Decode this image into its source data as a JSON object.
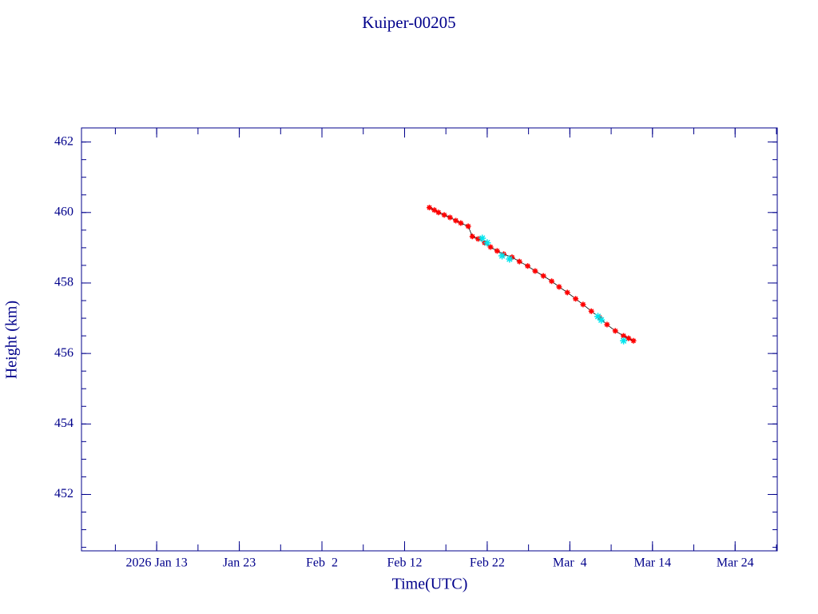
{
  "chart_data": {
    "type": "scatter",
    "title": "Kuiper-00205",
    "x_label": "Time(UTC)",
    "y_label": "Height (km)",
    "xlim": [
      3.9,
      88.1
    ],
    "ylim": [
      450.4,
      462.4
    ],
    "xticks": [
      {
        "value": 13,
        "label": "2026 Jan 13"
      },
      {
        "value": 23,
        "label": "Jan 23"
      },
      {
        "value": 33,
        "label": "Feb  2"
      },
      {
        "value": 43,
        "label": "Feb 12"
      },
      {
        "value": 53,
        "label": "Feb 22"
      },
      {
        "value": 63,
        "label": "Mar  4"
      },
      {
        "value": 73,
        "label": "Mar 14"
      },
      {
        "value": 83,
        "label": "Mar 24"
      }
    ],
    "yticks": [
      452,
      454,
      456,
      458,
      460,
      462
    ],
    "series": [
      {
        "color": "#ff0000",
        "line_color": "#000000",
        "x": [
          46.0,
          46.6,
          47.1,
          47.8,
          48.5,
          49.2,
          49.8,
          50.7,
          51.2,
          51.9,
          52.7,
          53.4,
          54.2,
          55.0,
          56.0,
          56.9,
          57.9,
          58.8,
          59.8,
          60.8,
          61.7,
          62.7,
          63.7,
          64.6,
          65.6,
          66.6,
          67.5,
          68.5,
          69.5,
          70.1,
          70.7
        ],
        "values": [
          460.14,
          460.07,
          460.0,
          459.93,
          459.86,
          459.77,
          459.7,
          459.61,
          459.32,
          459.25,
          459.14,
          459.02,
          458.91,
          458.82,
          458.73,
          458.61,
          458.48,
          458.34,
          458.2,
          458.05,
          457.89,
          457.73,
          457.55,
          457.39,
          457.2,
          457.02,
          456.82,
          456.64,
          456.5,
          456.43,
          456.36
        ]
      },
      {
        "color": "#00e5ee",
        "x": [
          52.4,
          53.0,
          54.8,
          55.7,
          66.4,
          66.8,
          69.5
        ],
        "values": [
          459.27,
          459.14,
          458.77,
          458.68,
          457.05,
          456.95,
          456.36
        ]
      }
    ]
  }
}
